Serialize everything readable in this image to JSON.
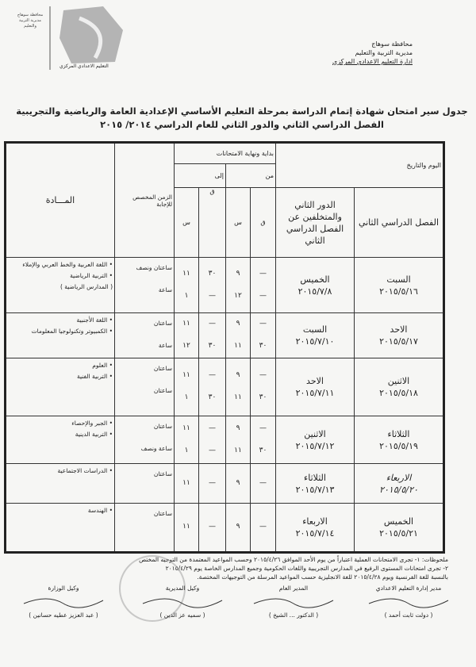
{
  "header": {
    "logo_text": "محافظة سوهاج مديرية التربية والتعليم",
    "logo_caption": "التعليم الاعدادي المركزي",
    "gov_lines": [
      "محافظة سوهاج",
      "مديرية التربية والتعليم",
      "ادارة التعليم الاعدادي المركزي"
    ],
    "title_line1": "جدول سير امتحان شهادة إتمام الدراسة بمرحلة التعليم الأساسي الإعدادية العامة والرياضية والتجريبية",
    "title_line2": "الفصل الدراسي الثاني والدور الثاني للعام الدراسي ٢٠١٤/ ٢٠١٥"
  },
  "table": {
    "h_day_date": "اليوم والتاريخ",
    "h_first_term": "الفصل الدراسي الثاني",
    "h_second_round": "الدور الثاني والمتخلفين عن الفصل الدراسي الثاني",
    "h_start_end": "بداية ونهاية الامتحانات",
    "h_from": "من",
    "h_to": "إلى",
    "h_min": "ق",
    "h_hour": "س",
    "h_duration": "الزمن المخصص للإجابة",
    "h_subject": "المـــادة",
    "rows": [
      {
        "first_day": "السبت",
        "first_date": "٢٠١٥/٥/١٦",
        "second_day": "الخميس",
        "second_date": "٢٠١٥/٧/٨",
        "from_q": [
          "—",
          "—"
        ],
        "from_s": [
          "٩",
          "١٢"
        ],
        "to_q": [
          "٣٠",
          "—"
        ],
        "to_s": [
          "١١",
          "١"
        ],
        "duration": [
          "ساعتان ونصف",
          "ساعة"
        ],
        "subjects": [
          "• اللغة العربية والخط العربي والإملاء",
          "• التربية الرياضية",
          "( المدارس الرياضية )"
        ]
      },
      {
        "first_day": "الاحد",
        "first_date": "٢٠١٥/٥/١٧",
        "second_day": "السبت",
        "second_date": "٢٠١٥/٧/١٠",
        "from_q": [
          "—",
          "٣٠"
        ],
        "from_s": [
          "٩",
          "١١"
        ],
        "to_q": [
          "—",
          "٣٠"
        ],
        "to_s": [
          "١١",
          "١٢"
        ],
        "duration": [
          "ساعتان",
          "ساعة"
        ],
        "subjects": [
          "• اللغة الأجنبية",
          "• الكمبيوتر وتكنولوجيا المعلومات"
        ]
      },
      {
        "first_day": "الاثنين",
        "first_date": "٢٠١٥/٥/١٨",
        "second_day": "الاحد",
        "second_date": "٢٠١٥/٧/١١",
        "from_q": [
          "—",
          "٣٠"
        ],
        "from_s": [
          "٩",
          "١١"
        ],
        "to_q": [
          "—",
          "٣٠"
        ],
        "to_s": [
          "١١",
          "١"
        ],
        "duration": [
          "ساعتان",
          "ساعتان"
        ],
        "subjects": [
          "• العلوم",
          "• التربية الفنية"
        ]
      },
      {
        "first_day": "الثلاثاء",
        "first_date": "٢٠١٥/٥/١٩",
        "second_day": "الاثنين",
        "second_date": "٢٠١٥/٧/١٢",
        "from_q": [
          "—",
          "٣٠"
        ],
        "from_s": [
          "٩",
          "١١"
        ],
        "to_q": [
          "—",
          "—"
        ],
        "to_s": [
          "١١",
          "١"
        ],
        "duration": [
          "ساعتان",
          "ساعة ونصف"
        ],
        "subjects": [
          "• الجبر والإحصاء",
          "• التربية الدينية"
        ]
      },
      {
        "first_day": "الاربعاء",
        "first_date": "٢٠١٥/٥/٢٠",
        "second_day": "الثلاثاء",
        "second_date": "٢٠١٥/٧/١٣",
        "from_q": [
          "—"
        ],
        "from_s": [
          "٩"
        ],
        "to_q": [
          "—"
        ],
        "to_s": [
          "١١"
        ],
        "duration": [
          "ساعتان"
        ],
        "subjects": [
          "• الدراسات الاجتماعية"
        ],
        "handwritten": true
      },
      {
        "first_day": "الخميس",
        "first_date": "٢٠١٥/٥/٢١",
        "second_day": "الاربعاء",
        "second_date": "٢٠١٥/٧/١٤",
        "from_q": [
          "—"
        ],
        "from_s": [
          "٩"
        ],
        "to_q": [
          "—"
        ],
        "to_s": [
          "١١"
        ],
        "duration": [
          "ساعتان"
        ],
        "subjects": [
          "• الهندسة"
        ]
      }
    ]
  },
  "notes": [
    "ملحوظات: ١- تجرى الامتحانات العملية اعتباراً من يوم الأحد الموافق ٢٠١٥/٤/٢٦ وحسب المواعيد المعتمدة من التوجيه المختص",
    "٢- تجرى امتحانات المستوى الرفيع في المدارس التجريبية واللغات الحكومية وجميع المدارس الخاصة يوم ٢٠١٥/٤/٢٩",
    "بالنسبة للغة الفرنسية ويوم ٢٠١٥/٤/٢٨ للغة الانجليزية حسب المواعيد المرسلة من التوجيهات المختصة."
  ],
  "signatures": [
    {
      "title": "مدير إدارة التعليم الاعدادي",
      "name": "( دولت ثابت أحمد )"
    },
    {
      "title": "المدير العام",
      "name": "( الدكتور ... الشيخ )"
    },
    {
      "title": "وكيل المديرية",
      "name": "( سميه عز الدين )"
    },
    {
      "title": "وكيل الوزارة",
      "name": "( عبد العزيز عطيه حسانين )"
    }
  ]
}
